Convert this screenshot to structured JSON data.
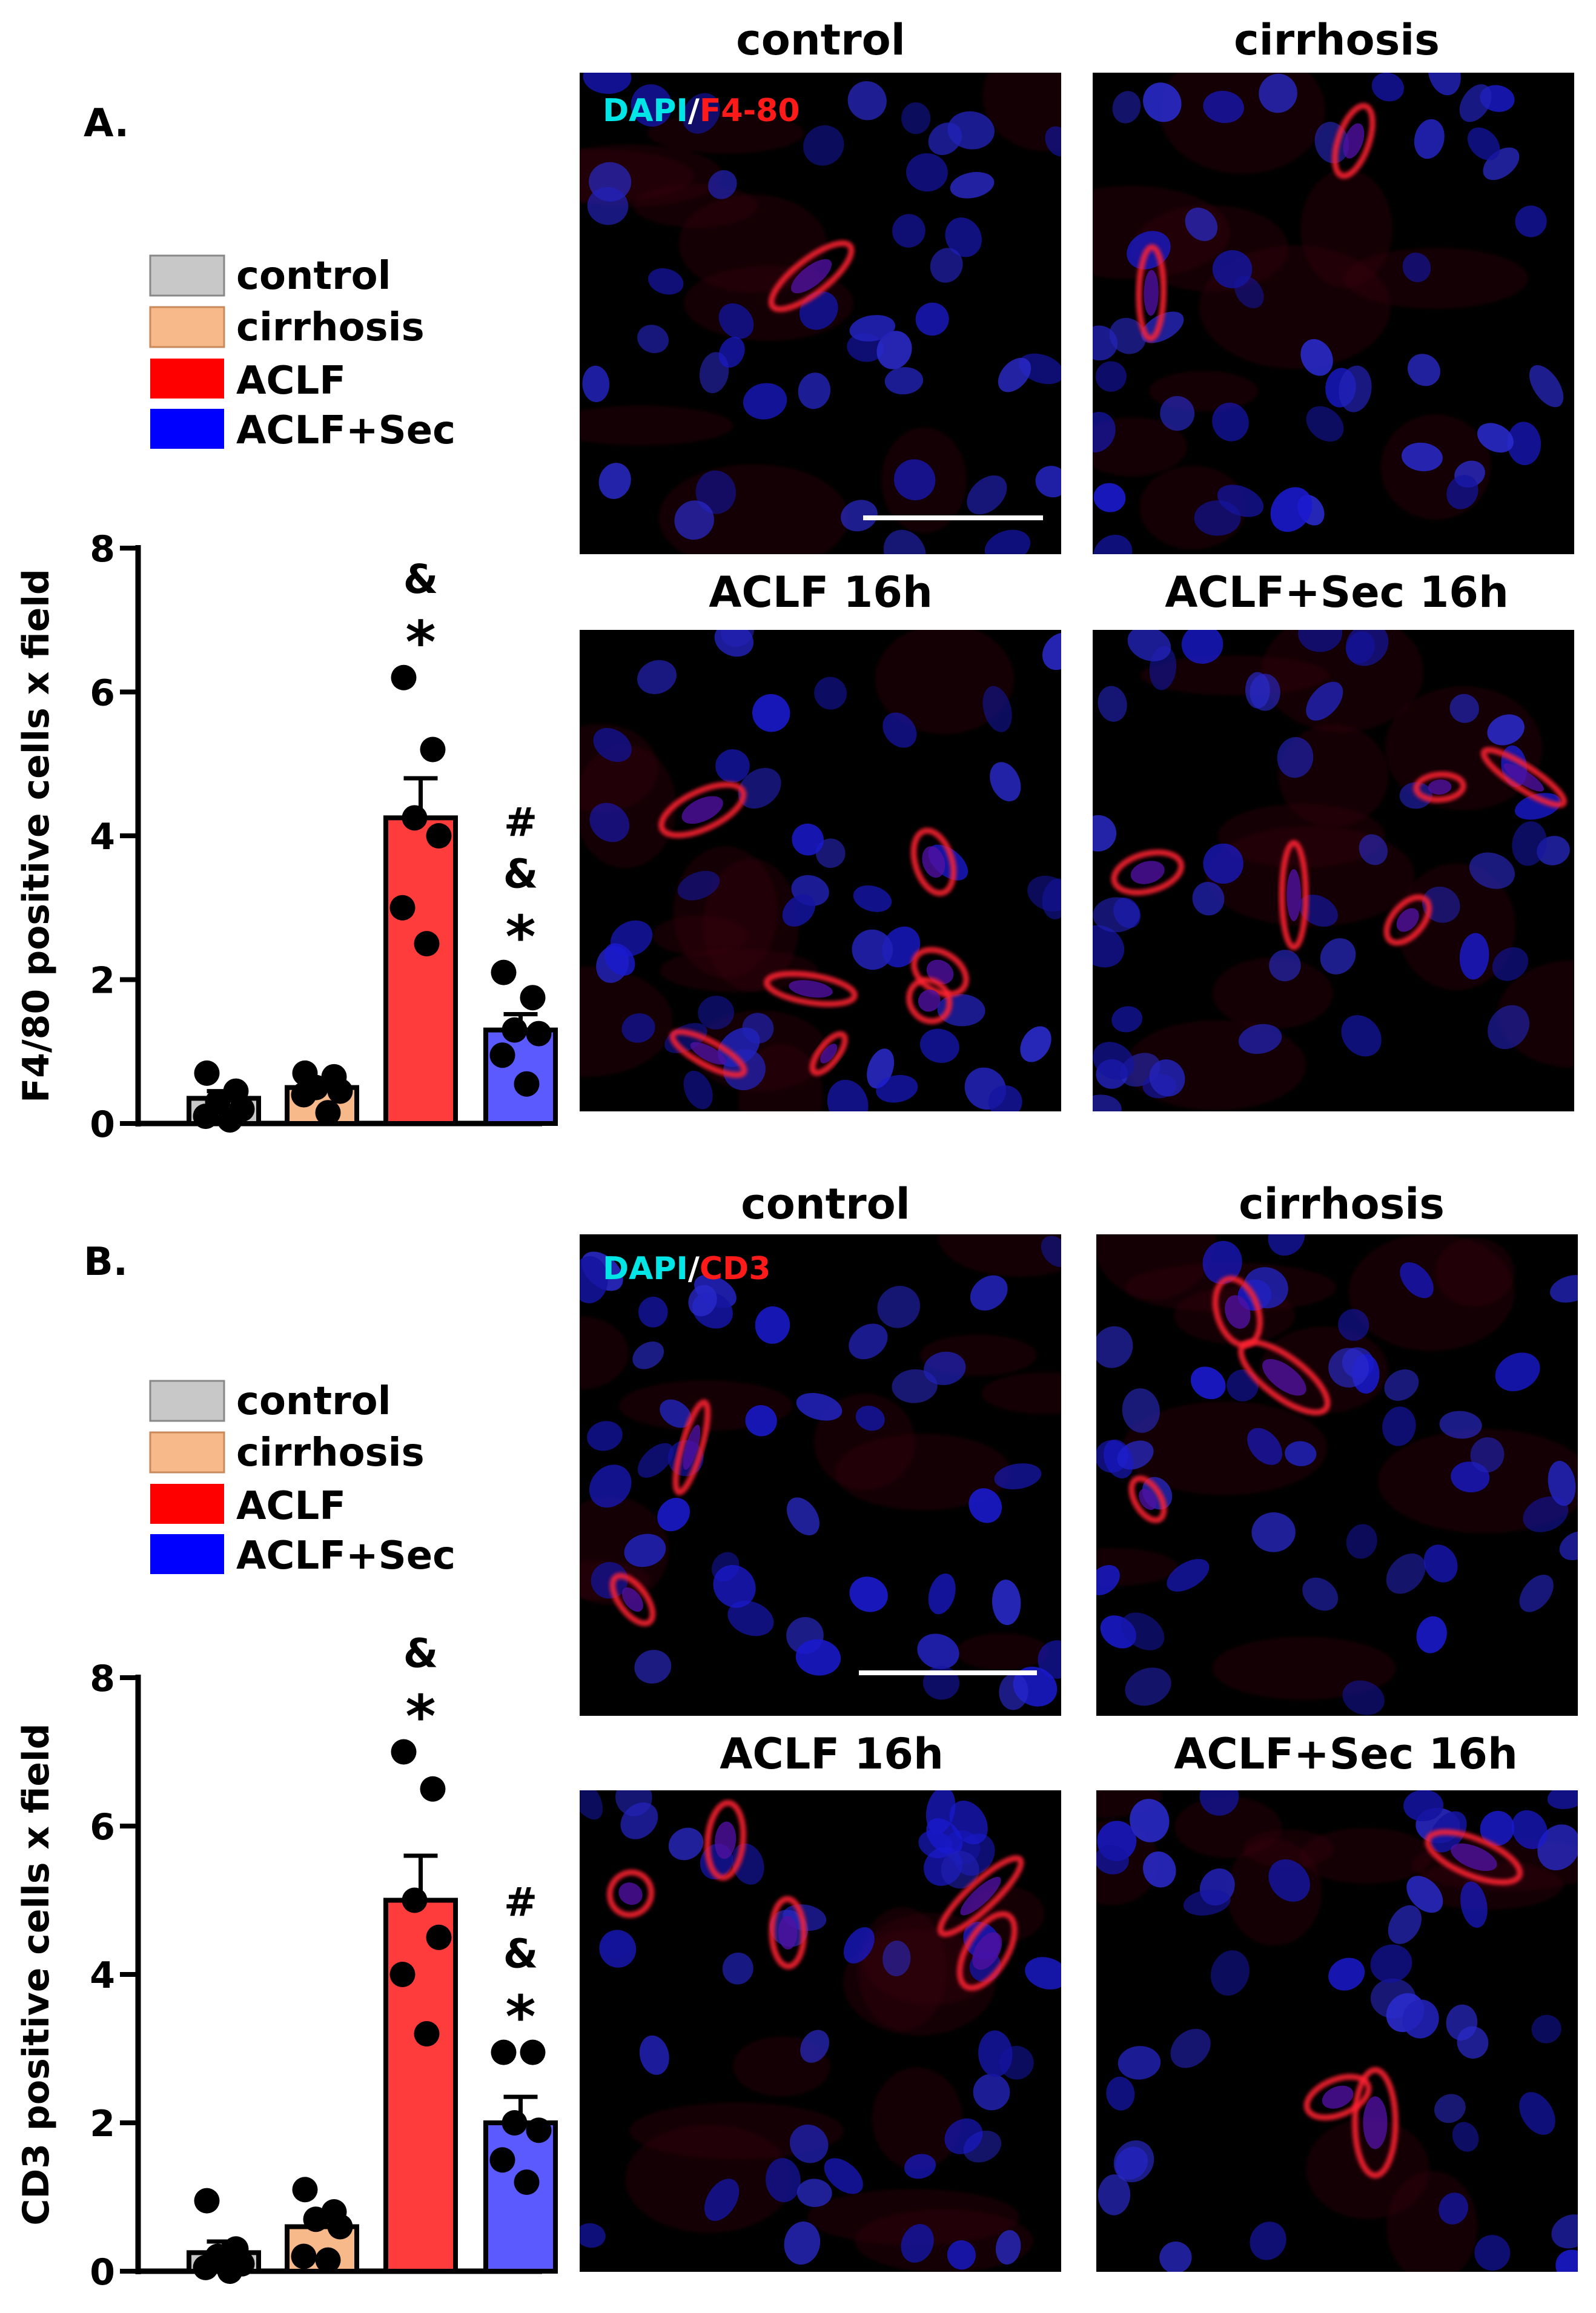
{
  "panels": [
    {
      "letter": "A.",
      "legend": [
        {
          "label": "control",
          "color": "#c8c8c8"
        },
        {
          "label": "cirrhosis",
          "color": "#f7b88a"
        },
        {
          "label": "ACLF",
          "color": "#ff0000"
        },
        {
          "label": "ACLF+Sec",
          "color": "#0000ff"
        }
      ],
      "micrographs": [
        {
          "title": "control",
          "stain_left": "DAPI",
          "stain_sep": "/",
          "stain_right": "F4-80"
        },
        {
          "title": "cirrhosis"
        },
        {
          "title": "ACLF 16h"
        },
        {
          "title": "ACLF+Sec 16h"
        }
      ]
    },
    {
      "letter": "B.",
      "legend": [
        {
          "label": "control",
          "color": "#c8c8c8"
        },
        {
          "label": "cirrhosis",
          "color": "#f7b88a"
        },
        {
          "label": "ACLF",
          "color": "#ff0000"
        },
        {
          "label": "ACLF+Sec",
          "color": "#0000ff"
        }
      ],
      "micrographs": [
        {
          "title": "control",
          "stain_left": "DAPI",
          "stain_sep": "/",
          "stain_right": "CD3"
        },
        {
          "title": "cirrhosis"
        },
        {
          "title": "ACLF 16h"
        },
        {
          "title": "ACLF+Sec 16h"
        }
      ]
    }
  ],
  "colors": {
    "control": "#c8c8c8",
    "cirrhosis": "#f7b88a",
    "ACLF": "#ff3c3c",
    "ACLF_Sec": "#5a5aff",
    "dapi_label": "#00e5e5",
    "marker_label": "#ff1a1a"
  },
  "chart_data": [
    {
      "type": "bar",
      "ylabel": "F4/80 positive cells  x field",
      "ylim": [
        0,
        8
      ],
      "yticks": [
        0,
        2,
        4,
        6,
        8
      ],
      "categories": [
        "control",
        "cirrhosis",
        "ACLF",
        "ACLF+Sec"
      ],
      "values": [
        0.35,
        0.5,
        4.25,
        1.3
      ],
      "sem": [
        0.1,
        0.1,
        0.55,
        0.22
      ],
      "points": [
        [
          0.7,
          0.45,
          0.3,
          0.2,
          0.1,
          0.05
        ],
        [
          0.7,
          0.65,
          0.5,
          0.45,
          0.4,
          0.15
        ],
        [
          6.2,
          5.2,
          4.25,
          4.0,
          3.0,
          2.5
        ],
        [
          2.1,
          1.75,
          1.3,
          1.25,
          0.95,
          0.55
        ]
      ],
      "annotations": [
        [],
        [],
        [
          "&",
          "*"
        ],
        [
          "#",
          "&",
          "*"
        ]
      ]
    },
    {
      "type": "bar",
      "ylabel": "CD3 positive cells  x field",
      "ylim": [
        0,
        8
      ],
      "yticks": [
        0,
        2,
        4,
        6,
        8
      ],
      "categories": [
        "control",
        "cirrhosis",
        "ACLF",
        "ACLF+Sec"
      ],
      "values": [
        0.25,
        0.6,
        5.0,
        2.0
      ],
      "sem": [
        0.15,
        0.15,
        0.6,
        0.35
      ],
      "points": [
        [
          0.95,
          0.3,
          0.2,
          0.1,
          0.05,
          0.0
        ],
        [
          1.1,
          0.8,
          0.7,
          0.6,
          0.2,
          0.15
        ],
        [
          7.0,
          6.5,
          5.0,
          4.5,
          4.0,
          3.2
        ],
        [
          2.95,
          2.95,
          2.0,
          1.9,
          1.5,
          1.2
        ]
      ],
      "annotations": [
        [],
        [],
        [
          "&",
          "*"
        ],
        [
          "#",
          "&",
          "*"
        ]
      ]
    }
  ]
}
